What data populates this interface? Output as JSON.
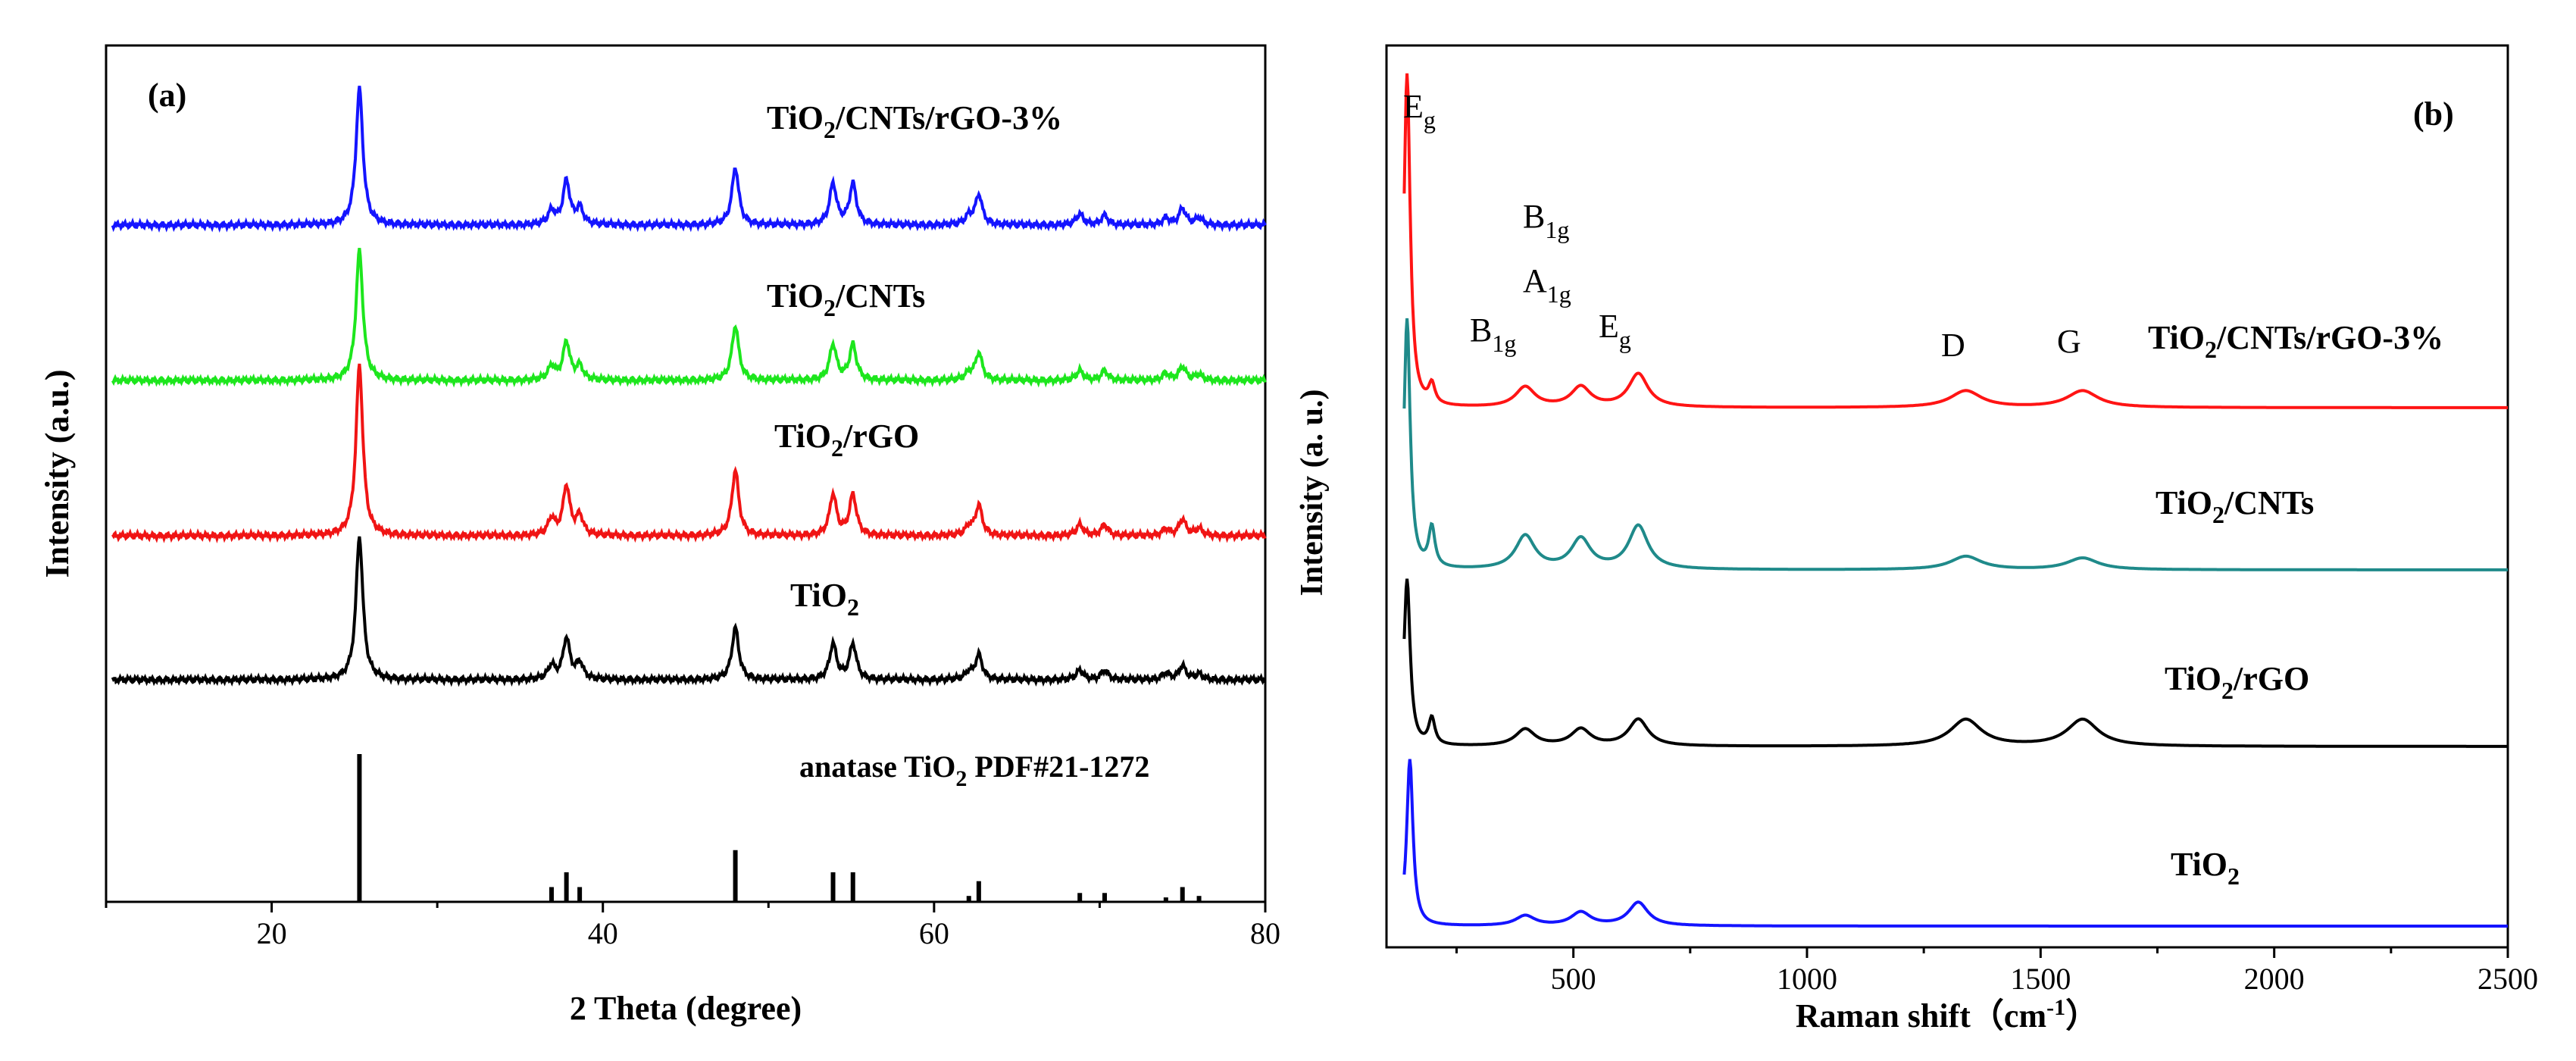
{
  "chart_data": [
    {
      "panel": "(a)",
      "type": "line",
      "xlabel": "2 Theta (degree)",
      "ylabel": "Intensity (a.u.)",
      "xlim": [
        10,
        80
      ],
      "xticks": [
        20,
        40,
        60,
        80
      ],
      "peaks_2theta": [
        25.3,
        36.9,
        37.8,
        38.6,
        48.0,
        53.9,
        55.1,
        62.1,
        62.7,
        68.8,
        70.3,
        74.0,
        75.0,
        76.0
      ],
      "series": [
        {
          "name": "TiO2/CNTs/rGO-3%",
          "color": "#1414ff",
          "peak_heights": [
            1.0,
            0.1,
            0.32,
            0.12,
            0.42,
            0.3,
            0.3,
            0.06,
            0.22,
            0.08,
            0.07,
            0.05,
            0.12,
            0.05
          ]
        },
        {
          "name": "TiO2/CNTs",
          "color": "#1de61d",
          "peak_heights": [
            0.95,
            0.1,
            0.28,
            0.1,
            0.4,
            0.26,
            0.26,
            0.05,
            0.2,
            0.07,
            0.07,
            0.05,
            0.1,
            0.04
          ]
        },
        {
          "name": "TiO2/rGO",
          "color": "#f01414",
          "peak_heights": [
            1.25,
            0.12,
            0.36,
            0.14,
            0.48,
            0.3,
            0.3,
            0.06,
            0.22,
            0.08,
            0.08,
            0.05,
            0.12,
            0.05
          ]
        },
        {
          "name": "TiO2",
          "color": "#000000",
          "peak_heights": [
            1.05,
            0.1,
            0.3,
            0.12,
            0.38,
            0.26,
            0.26,
            0.05,
            0.18,
            0.07,
            0.07,
            0.05,
            0.1,
            0.04
          ]
        }
      ],
      "reference": {
        "name": "anatase TiO2 PDF#21-1272",
        "positions": [
          25.3,
          36.9,
          37.8,
          38.6,
          48.0,
          53.9,
          55.1,
          62.1,
          62.7,
          68.8,
          70.3,
          74.0,
          75.0,
          76.0
        ],
        "intensities": [
          100,
          10,
          20,
          10,
          35,
          20,
          20,
          4,
          14,
          6,
          6,
          3,
          10,
          4
        ]
      },
      "labels": {
        "s1": {
          "main": "TiO",
          "sub": "2",
          "rest": "/CNTs/rGO-3%"
        },
        "s2": {
          "main": "TiO",
          "sub": "2",
          "rest": "/CNTs"
        },
        "s3": {
          "main": "TiO",
          "sub": "2",
          "rest": "/rGO"
        },
        "s4": {
          "main": "TiO",
          "sub": "2",
          "rest": ""
        },
        "ref": {
          "main": "anatase TiO",
          "sub": "2",
          "rest": " PDF#21-1272"
        }
      }
    },
    {
      "panel": "(b)",
      "type": "line",
      "xlabel": "Raman shift（cm-1）",
      "xlabel_parts": {
        "main": "Raman shift（cm",
        "sup": "-1",
        "rest": "）"
      },
      "ylabel": "Intensity (a. u.)",
      "xlim": [
        100,
        2500
      ],
      "xticks": [
        500,
        1000,
        1500,
        2000,
        2500
      ],
      "series": [
        {
          "name": "TiO2/CNTs/rGO-3%",
          "color": "#ff1414",
          "peaks": [
            [
              144,
              1.0
            ],
            [
              197,
              0.06
            ],
            [
              397,
              0.06
            ],
            [
              516,
              0.06
            ],
            [
              639,
              0.1
            ],
            [
              1340,
              0.05
            ],
            [
              1590,
              0.05
            ]
          ]
        },
        {
          "name": "TiO2/CNTs",
          "color": "#1f8a8a",
          "peaks": [
            [
              144,
              0.75
            ],
            [
              197,
              0.12
            ],
            [
              397,
              0.1
            ],
            [
              516,
              0.09
            ],
            [
              639,
              0.13
            ],
            [
              1340,
              0.04
            ],
            [
              1590,
              0.035
            ]
          ]
        },
        {
          "name": "TiO2/rGO",
          "color": "#000000",
          "peaks": [
            [
              144,
              0.5
            ],
            [
              197,
              0.08
            ],
            [
              397,
              0.05
            ],
            [
              516,
              0.05
            ],
            [
              639,
              0.08
            ],
            [
              1340,
              0.08
            ],
            [
              1590,
              0.08
            ]
          ]
        },
        {
          "name": "TiO2",
          "color": "#1414ff",
          "peaks": [
            [
              150,
              0.5
            ],
            [
              397,
              0.03
            ],
            [
              516,
              0.04
            ],
            [
              639,
              0.07
            ]
          ]
        }
      ],
      "band_labels": [
        {
          "main": "E",
          "sub": "g"
        },
        {
          "main": "B",
          "sub": "1g"
        },
        {
          "main": "B",
          "sub": "1g"
        },
        {
          "main": "A",
          "sub": "1g"
        },
        {
          "main": "E",
          "sub": "g"
        },
        {
          "main": "D",
          "sub": ""
        },
        {
          "main": "G",
          "sub": ""
        }
      ],
      "labels": {
        "s1": {
          "main": "TiO",
          "sub": "2",
          "rest": "/CNTs/rGO-3%"
        },
        "s2": {
          "main": "TiO",
          "sub": "2",
          "rest": "/CNTs"
        },
        "s3": {
          "main": "TiO",
          "sub": "2",
          "rest": "/rGO"
        },
        "s4": {
          "main": "TiO",
          "sub": "2",
          "rest": ""
        }
      }
    }
  ]
}
